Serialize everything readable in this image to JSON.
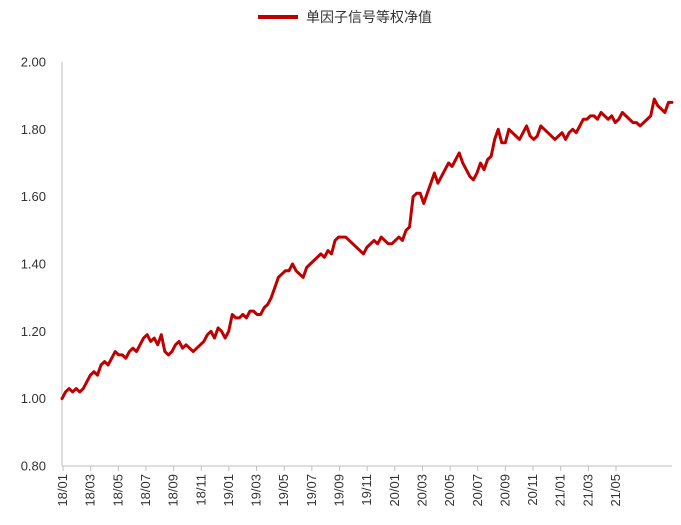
{
  "chart_data": {
    "type": "line",
    "title": "",
    "xlabel": "",
    "ylabel": "",
    "ylim": [
      0.8,
      2.0
    ],
    "yticks": [
      "0.80",
      "1.00",
      "1.20",
      "1.40",
      "1.60",
      "1.80",
      "2.00"
    ],
    "xticks": [
      "18/01",
      "18/03",
      "18/05",
      "18/07",
      "18/09",
      "18/11",
      "19/01",
      "19/03",
      "19/05",
      "19/07",
      "19/09",
      "19/11",
      "20/01",
      "20/03",
      "20/05",
      "20/07",
      "20/09",
      "20/11",
      "21/01",
      "21/03",
      "21/05"
    ],
    "legend": "top-center",
    "grid": false,
    "colors": {
      "series": "#c00000",
      "axis": "#bfbfbf",
      "text": "#333333"
    },
    "series": [
      {
        "name": "单因子信号等权净值",
        "values": [
          1.0,
          1.02,
          1.03,
          1.02,
          1.03,
          1.02,
          1.03,
          1.05,
          1.07,
          1.08,
          1.07,
          1.1,
          1.11,
          1.1,
          1.12,
          1.14,
          1.13,
          1.13,
          1.12,
          1.14,
          1.15,
          1.14,
          1.16,
          1.18,
          1.19,
          1.17,
          1.18,
          1.16,
          1.19,
          1.14,
          1.13,
          1.14,
          1.16,
          1.17,
          1.15,
          1.16,
          1.15,
          1.14,
          1.15,
          1.16,
          1.17,
          1.19,
          1.2,
          1.18,
          1.21,
          1.2,
          1.18,
          1.2,
          1.25,
          1.24,
          1.24,
          1.25,
          1.24,
          1.26,
          1.26,
          1.25,
          1.25,
          1.27,
          1.28,
          1.3,
          1.33,
          1.36,
          1.37,
          1.38,
          1.38,
          1.4,
          1.38,
          1.37,
          1.36,
          1.39,
          1.4,
          1.41,
          1.42,
          1.43,
          1.42,
          1.44,
          1.43,
          1.47,
          1.48,
          1.48,
          1.48,
          1.47,
          1.46,
          1.45,
          1.44,
          1.43,
          1.45,
          1.46,
          1.47,
          1.46,
          1.48,
          1.47,
          1.46,
          1.46,
          1.47,
          1.48,
          1.47,
          1.5,
          1.51,
          1.6,
          1.61,
          1.61,
          1.58,
          1.61,
          1.64,
          1.67,
          1.64,
          1.66,
          1.68,
          1.7,
          1.69,
          1.71,
          1.73,
          1.7,
          1.68,
          1.66,
          1.65,
          1.67,
          1.7,
          1.68,
          1.71,
          1.72,
          1.77,
          1.8,
          1.76,
          1.76,
          1.8,
          1.79,
          1.78,
          1.77,
          1.79,
          1.81,
          1.78,
          1.77,
          1.78,
          1.81,
          1.8,
          1.79,
          1.78,
          1.77,
          1.78,
          1.79,
          1.77,
          1.79,
          1.8,
          1.79,
          1.81,
          1.83,
          1.83,
          1.84,
          1.84,
          1.83,
          1.85,
          1.84,
          1.83,
          1.84,
          1.82,
          1.83,
          1.85,
          1.84,
          1.83,
          1.82,
          1.82,
          1.81,
          1.82,
          1.83,
          1.84,
          1.89,
          1.87,
          1.86,
          1.85,
          1.88,
          1.88
        ]
      }
    ]
  }
}
